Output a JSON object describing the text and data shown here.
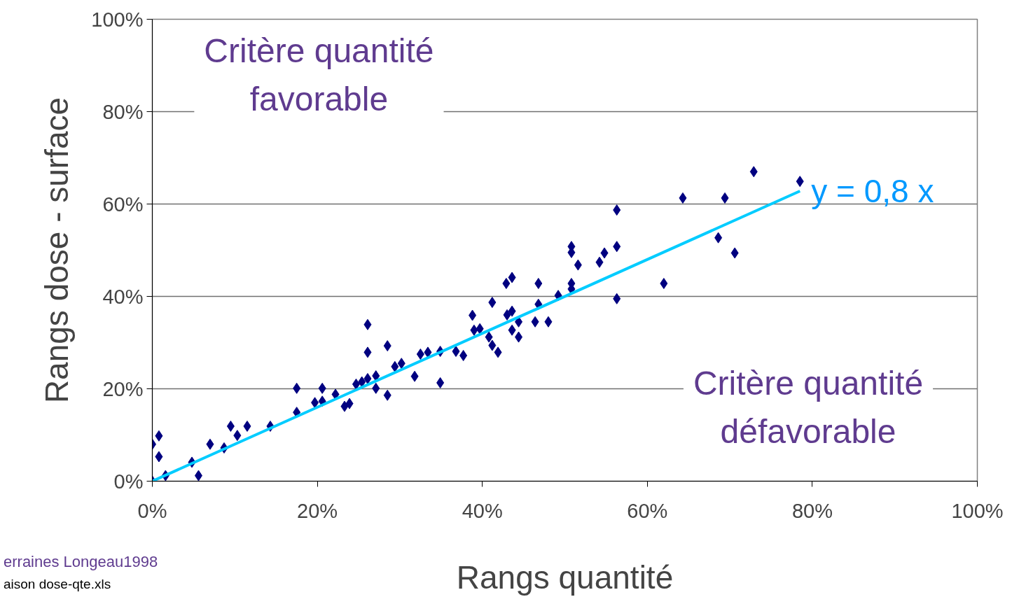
{
  "chart_data": {
    "type": "scatter",
    "xlabel": "Rangs quantité",
    "ylabel": "Rangs dose - surface",
    "xlim": [
      0,
      100
    ],
    "ylim": [
      0,
      100
    ],
    "xticks": [
      {
        "value": 0,
        "label": "0%"
      },
      {
        "value": 20,
        "label": "20%"
      },
      {
        "value": 40,
        "label": "40%"
      },
      {
        "value": 60,
        "label": "60%"
      },
      {
        "value": 80,
        "label": "80%"
      },
      {
        "value": 100,
        "label": "100%"
      }
    ],
    "yticks": [
      {
        "value": 0,
        "label": "0%"
      },
      {
        "value": 20,
        "label": "20%"
      },
      {
        "value": 40,
        "label": "40%"
      },
      {
        "value": 60,
        "label": "60%"
      },
      {
        "value": 80,
        "label": "80%"
      },
      {
        "value": 100,
        "label": "100%"
      }
    ],
    "grid": "y",
    "marker": "diamond",
    "series": [
      {
        "color": "#000080",
        "x": [
          0,
          0,
          0.8,
          0.8,
          1.6,
          4.8,
          5.6,
          7.0,
          8.7,
          9.5,
          10.3,
          11.5,
          14.3,
          17.5,
          17.5,
          19.7,
          20.6,
          20.6,
          22.2,
          23.3,
          23.9,
          24.7,
          25.4,
          26.1,
          26.1,
          26.1,
          27.1,
          27.1,
          28.5,
          28.5,
          29.4,
          30.2,
          31.8,
          32.5,
          33.4,
          34.9,
          34.9,
          36.8,
          37.7,
          38.8,
          39.0,
          39.7,
          40.8,
          41.2,
          41.2,
          41.9,
          42.9,
          43.0,
          43.6,
          43.6,
          43.6,
          44.4,
          44.4,
          46.4,
          46.8,
          46.8,
          48.0,
          49.2,
          50.8,
          50.8,
          50.8,
          50.8,
          51.6,
          54.2,
          54.8,
          56.3,
          56.3,
          56.3,
          62.0,
          64.3,
          68.6,
          69.4,
          70.6,
          72.9,
          78.5
        ],
        "values": [
          0,
          8.0,
          9.8,
          5.3,
          1.2,
          4.1,
          1.2,
          8.0,
          7.2,
          11.9,
          9.9,
          11.9,
          11.9,
          20.1,
          14.9,
          17.0,
          20.1,
          17.3,
          18.8,
          16.2,
          16.8,
          21.0,
          21.5,
          33.9,
          27.9,
          22.2,
          22.8,
          20.1,
          29.3,
          18.6,
          24.8,
          25.5,
          22.7,
          27.5,
          27.9,
          28.1,
          21.3,
          28.1,
          27.2,
          35.9,
          32.7,
          33.0,
          31.2,
          38.7,
          29.4,
          27.9,
          42.8,
          36.0,
          44.1,
          36.8,
          32.7,
          34.5,
          31.2,
          34.5,
          42.8,
          38.3,
          34.5,
          40.2,
          50.8,
          49.5,
          42.8,
          41.6,
          46.8,
          47.4,
          49.4,
          58.7,
          50.8,
          39.5,
          42.8,
          61.3,
          52.7,
          61.3,
          49.4,
          67.0,
          64.9
        ]
      },
      {
        "type": "line",
        "color": "#00ccff",
        "line_style": "solid",
        "marker": "none",
        "x": [
          0,
          78.5
        ],
        "values": [
          0,
          62.8
        ]
      }
    ],
    "annotations": [
      "Critère quantité\nfavorable",
      "Critère quantité\ndéfavorable",
      {
        "text": "y = 0,8 x",
        "x": 78.5,
        "y": 62.8
      },
      "erraines Longeau1998",
      "aison dose-qte.xls"
    ]
  }
}
